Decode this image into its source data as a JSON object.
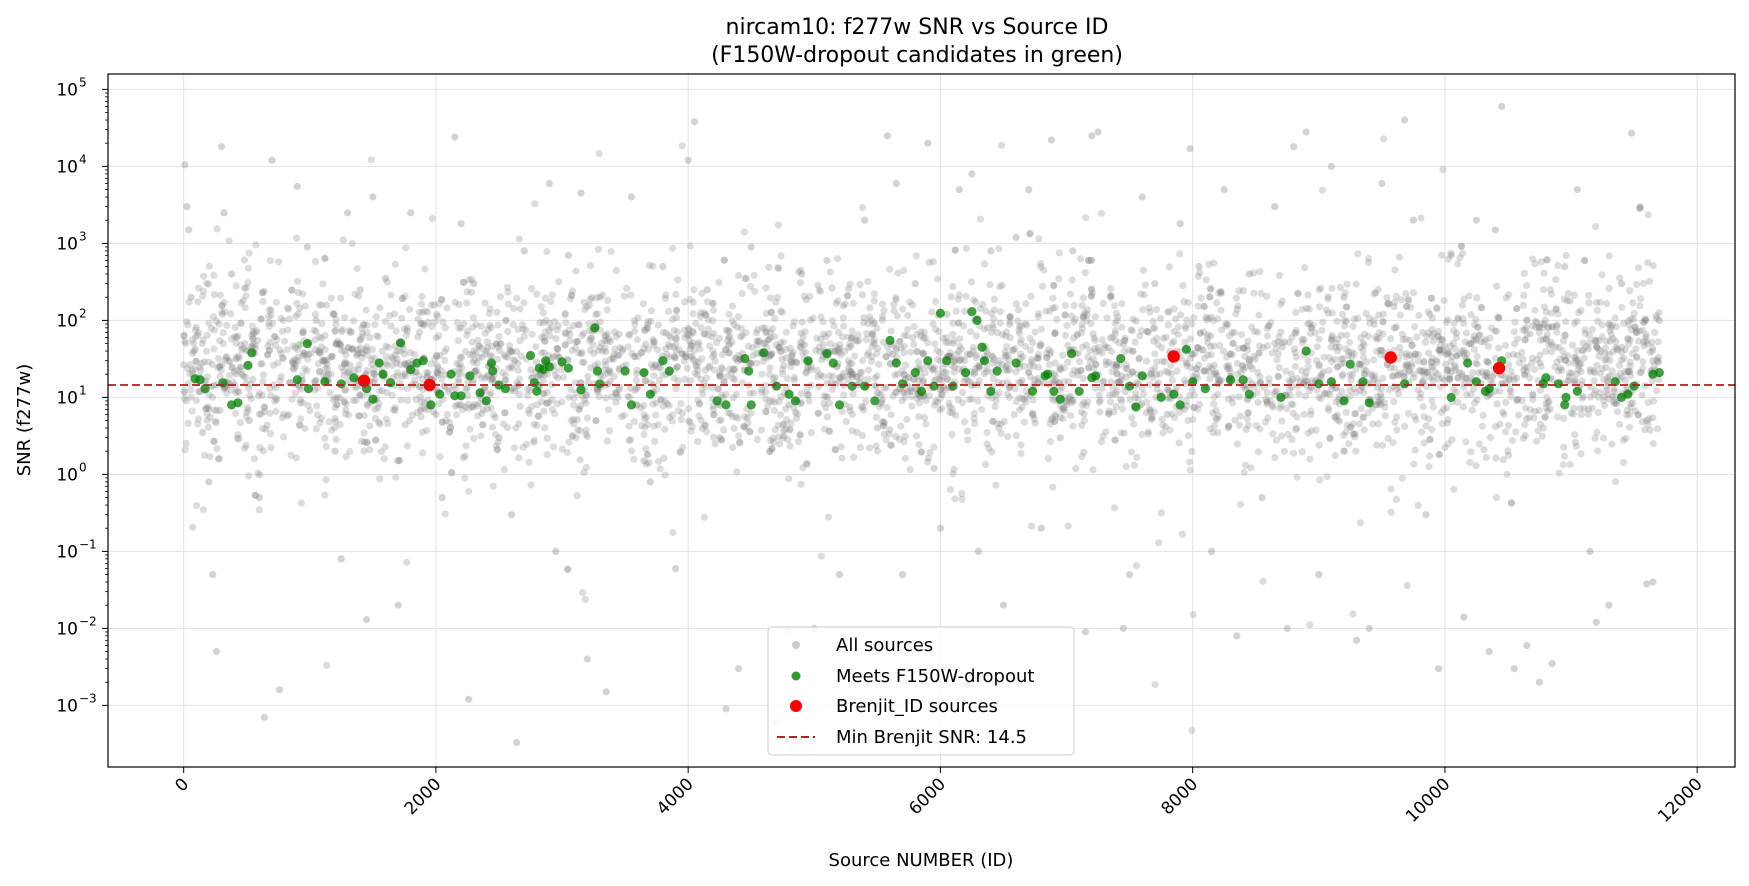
{
  "chart_data": {
    "type": "scatter",
    "title": "nircam10: f277w SNR vs Source ID",
    "subtitle": "(F150W-dropout candidates in green)",
    "xlabel": "Source NUMBER (ID)",
    "ylabel": "SNR (f277w)",
    "xlim": [
      -600,
      12300
    ],
    "ylim_log10": [
      -3.8,
      5.2
    ],
    "yscale": "log",
    "grid": true,
    "legend_placement": "lower-center",
    "x_ticks": [
      {
        "value": 0,
        "label": "0"
      },
      {
        "value": 2000,
        "label": "2000"
      },
      {
        "value": 4000,
        "label": "4000"
      },
      {
        "value": 6000,
        "label": "6000"
      },
      {
        "value": 8000,
        "label": "8000"
      },
      {
        "value": 10000,
        "label": "10000"
      },
      {
        "value": 12000,
        "label": "12000"
      }
    ],
    "y_ticks": [
      {
        "exp": -3,
        "base": "10",
        "sup": "−3"
      },
      {
        "exp": -2,
        "base": "10",
        "sup": "−2"
      },
      {
        "exp": -1,
        "base": "10",
        "sup": "−1"
      },
      {
        "exp": 0,
        "base": "10",
        "sup": "0"
      },
      {
        "exp": 1,
        "base": "10",
        "sup": "1"
      },
      {
        "exp": 2,
        "base": "10",
        "sup": "2"
      },
      {
        "exp": 3,
        "base": "10",
        "sup": "3"
      },
      {
        "exp": 4,
        "base": "10",
        "sup": "4"
      },
      {
        "exp": 5,
        "base": "10",
        "sup": "5"
      }
    ],
    "colors": {
      "all_sources": "#808080",
      "dropout": "#008000",
      "brenjit": "#ff0000",
      "threshold_line": "#b22222"
    },
    "threshold": {
      "value": 14.5,
      "label": "Min Brenjit SNR: 14.5"
    },
    "series": [
      {
        "name": "All sources",
        "note": "≈11,700 sources spanning ID 0–11700; bulk of SNR between 1 and 100 (log-normal scatter around ~25), tails from ~3e-4 to ~6e4",
        "points": [
          [
            10,
            10500
          ],
          [
            25,
            3000
          ],
          [
            40,
            1500
          ],
          [
            60,
            200
          ],
          [
            80,
            40
          ],
          [
            120,
            12
          ],
          [
            150,
            3.5
          ],
          [
            200,
            0.8
          ],
          [
            230,
            0.05
          ],
          [
            260,
            0.005
          ],
          [
            300,
            18000
          ],
          [
            320,
            2500
          ],
          [
            380,
            400
          ],
          [
            420,
            60
          ],
          [
            460,
            20
          ],
          [
            520,
            5
          ],
          [
            600,
            0.5
          ],
          [
            640,
            0.0007
          ],
          [
            700,
            12000
          ],
          [
            760,
            0.0016
          ],
          [
            900,
            5500
          ],
          [
            980,
            900
          ],
          [
            1050,
            100
          ],
          [
            1100,
            30
          ],
          [
            1200,
            2
          ],
          [
            1250,
            0.08
          ],
          [
            1300,
            2500
          ],
          [
            1400,
            250
          ],
          [
            1450,
            0.013
          ],
          [
            1500,
            4000
          ],
          [
            1600,
            350
          ],
          [
            1700,
            0.02
          ],
          [
            1800,
            2500
          ],
          [
            1900,
            90
          ],
          [
            2000,
            6
          ],
          [
            2050,
            0.5
          ],
          [
            2150,
            24000
          ],
          [
            2200,
            1800
          ],
          [
            2260,
            0.0012
          ],
          [
            2300,
            300
          ],
          [
            2400,
            40
          ],
          [
            2500,
            3
          ],
          [
            2600,
            0.3
          ],
          [
            2640,
            0.00033
          ],
          [
            2700,
            800
          ],
          [
            2800,
            15
          ],
          [
            2900,
            6000
          ],
          [
            2950,
            0.1
          ],
          [
            3050,
            700
          ],
          [
            3150,
            4500
          ],
          [
            3200,
            0.004
          ],
          [
            3300,
            200
          ],
          [
            3350,
            0.0015
          ],
          [
            3450,
            35
          ],
          [
            3550,
            4000
          ],
          [
            3650,
            1.5
          ],
          [
            3700,
            0.8
          ],
          [
            3800,
            500
          ],
          [
            3900,
            0.06
          ],
          [
            4000,
            12000
          ],
          [
            4050,
            38000
          ],
          [
            4150,
            250
          ],
          [
            4250,
            3
          ],
          [
            4300,
            0.0009
          ],
          [
            4400,
            0.003
          ],
          [
            4500,
            900
          ],
          [
            4600,
            50
          ],
          [
            4700,
            0.0006
          ],
          [
            4800,
            8
          ],
          [
            4900,
            400
          ],
          [
            5000,
            0.01
          ],
          [
            5100,
            600
          ],
          [
            5200,
            0.05
          ],
          [
            5300,
            60
          ],
          [
            5400,
            2000
          ],
          [
            5500,
            4
          ],
          [
            5580,
            25000
          ],
          [
            5650,
            6000
          ],
          [
            5700,
            0.05
          ],
          [
            5800,
            300
          ],
          [
            5900,
            20000
          ],
          [
            5950,
            1.2
          ],
          [
            6000,
            0.2
          ],
          [
            6050,
            120
          ],
          [
            6150,
            5000
          ],
          [
            6250,
            8000
          ],
          [
            6300,
            0.1
          ],
          [
            6400,
            800
          ],
          [
            6500,
            0.02
          ],
          [
            6600,
            1200
          ],
          [
            6700,
            5000
          ],
          [
            6800,
            0.2
          ],
          [
            6880,
            22000
          ],
          [
            6950,
            3
          ],
          [
            7050,
            800
          ],
          [
            7150,
            0.009
          ],
          [
            7200,
            25000
          ],
          [
            7250,
            28000
          ],
          [
            7350,
            200
          ],
          [
            7450,
            0.01
          ],
          [
            7500,
            0.05
          ],
          [
            7600,
            4000
          ],
          [
            7700,
            300
          ],
          [
            7800,
            6
          ],
          [
            7900,
            1800
          ],
          [
            7980,
            17000
          ],
          [
            8050,
            500
          ],
          [
            8150,
            0.1
          ],
          [
            8250,
            5000
          ],
          [
            8350,
            0.008
          ],
          [
            8450,
            400
          ],
          [
            8550,
            0.5
          ],
          [
            8650,
            3000
          ],
          [
            8750,
            0.01
          ],
          [
            8800,
            18000
          ],
          [
            8900,
            28000
          ],
          [
            9000,
            0.05
          ],
          [
            9100,
            10000
          ],
          [
            9200,
            200
          ],
          [
            9300,
            0.007
          ],
          [
            9400,
            0.01
          ],
          [
            9500,
            6000
          ],
          [
            9600,
            80
          ],
          [
            9680,
            40000
          ],
          [
            9750,
            2000
          ],
          [
            9850,
            0.3
          ],
          [
            9950,
            0.003
          ],
          [
            10050,
            700
          ],
          [
            10150,
            0.014
          ],
          [
            10250,
            2000
          ],
          [
            10350,
            0.005
          ],
          [
            10400,
            1500
          ],
          [
            10450,
            60000
          ],
          [
            10550,
            0.003
          ],
          [
            10650,
            0.006
          ],
          [
            10750,
            0.002
          ],
          [
            10850,
            0.0035
          ],
          [
            10950,
            500
          ],
          [
            11050,
            5000
          ],
          [
            11150,
            0.1
          ],
          [
            11200,
            0.012
          ],
          [
            11300,
            0.02
          ],
          [
            11400,
            300
          ],
          [
            11480,
            27000
          ],
          [
            11550,
            3000
          ],
          [
            11600,
            0.038
          ],
          [
            11650,
            0.04
          ],
          [
            11700,
            100
          ],
          [
            11650,
            30
          ],
          [
            11600,
            5
          ]
        ]
      },
      {
        "name": "Meets F150W-dropout",
        "points": [
          [
            90,
            17.5
          ],
          [
            130,
            17
          ],
          [
            170,
            13
          ],
          [
            310,
            15.5
          ],
          [
            380,
            8
          ],
          [
            430,
            8.5
          ],
          [
            510,
            26
          ],
          [
            540,
            38
          ],
          [
            900,
            17
          ],
          [
            980,
            50
          ],
          [
            990,
            13
          ],
          [
            1120,
            16
          ],
          [
            1250,
            15
          ],
          [
            1350,
            18
          ],
          [
            1450,
            13
          ],
          [
            1500,
            9.5
          ],
          [
            1550,
            28
          ],
          [
            1580,
            20
          ],
          [
            1640,
            15.5
          ],
          [
            1720,
            51
          ],
          [
            1800,
            23
          ],
          [
            1850,
            28
          ],
          [
            1900,
            30
          ],
          [
            1960,
            8
          ],
          [
            2030,
            11
          ],
          [
            2120,
            20
          ],
          [
            2150,
            10.5
          ],
          [
            2200,
            10.5
          ],
          [
            2270,
            19
          ],
          [
            2350,
            11.5
          ],
          [
            2400,
            9
          ],
          [
            2440,
            28
          ],
          [
            2450,
            22
          ],
          [
            2500,
            14.5
          ],
          [
            2550,
            13
          ],
          [
            2750,
            35
          ],
          [
            2780,
            15.5
          ],
          [
            2800,
            12
          ],
          [
            2820,
            24
          ],
          [
            2850,
            23
          ],
          [
            2870,
            30
          ],
          [
            2900,
            25
          ],
          [
            3000,
            29
          ],
          [
            3050,
            24
          ],
          [
            3150,
            12.5
          ],
          [
            3260,
            80
          ],
          [
            3280,
            22
          ],
          [
            3300,
            15
          ],
          [
            3500,
            22
          ],
          [
            3550,
            8
          ],
          [
            3650,
            21
          ],
          [
            3700,
            11
          ],
          [
            3800,
            30
          ],
          [
            3850,
            22
          ],
          [
            4230,
            9
          ],
          [
            4300,
            8
          ],
          [
            4450,
            32
          ],
          [
            4480,
            22
          ],
          [
            4500,
            8
          ],
          [
            4600,
            38
          ],
          [
            4700,
            14
          ],
          [
            4800,
            11
          ],
          [
            4850,
            9
          ],
          [
            4950,
            30
          ],
          [
            5100,
            37
          ],
          [
            5150,
            28
          ],
          [
            5200,
            8
          ],
          [
            5300,
            14
          ],
          [
            5400,
            14
          ],
          [
            5480,
            9
          ],
          [
            5600,
            55
          ],
          [
            5650,
            28
          ],
          [
            5700,
            15
          ],
          [
            5800,
            21
          ],
          [
            5850,
            12
          ],
          [
            5900,
            30
          ],
          [
            5950,
            14
          ],
          [
            6000,
            124
          ],
          [
            6050,
            30
          ],
          [
            6100,
            14
          ],
          [
            6200,
            21
          ],
          [
            6250,
            130
          ],
          [
            6290,
            100
          ],
          [
            6330,
            45
          ],
          [
            6350,
            30
          ],
          [
            6400,
            12
          ],
          [
            6450,
            22
          ],
          [
            6600,
            28
          ],
          [
            6730,
            12
          ],
          [
            6830,
            19
          ],
          [
            6850,
            20
          ],
          [
            6900,
            12
          ],
          [
            6950,
            9.5
          ],
          [
            7040,
            37
          ],
          [
            7100,
            12
          ],
          [
            7200,
            18
          ],
          [
            7230,
            19
          ],
          [
            7430,
            32
          ],
          [
            7500,
            14
          ],
          [
            7550,
            7.5
          ],
          [
            7600,
            19
          ],
          [
            7750,
            10
          ],
          [
            7850,
            11
          ],
          [
            7900,
            8
          ],
          [
            7950,
            42
          ],
          [
            8000,
            16
          ],
          [
            8100,
            13
          ],
          [
            8300,
            17
          ],
          [
            8400,
            17
          ],
          [
            8450,
            11
          ],
          [
            8700,
            10
          ],
          [
            8900,
            40
          ],
          [
            9000,
            15
          ],
          [
            9100,
            16
          ],
          [
            9200,
            9
          ],
          [
            9250,
            27
          ],
          [
            9350,
            16
          ],
          [
            9400,
            8.5
          ],
          [
            9680,
            15
          ],
          [
            10050,
            10
          ],
          [
            10180,
            28
          ],
          [
            10250,
            16
          ],
          [
            10320,
            12
          ],
          [
            10350,
            13
          ],
          [
            10450,
            30
          ],
          [
            10780,
            15
          ],
          [
            10800,
            18
          ],
          [
            10900,
            15
          ],
          [
            10950,
            8
          ],
          [
            10960,
            10
          ],
          [
            11050,
            12
          ],
          [
            11350,
            16
          ],
          [
            11400,
            10
          ],
          [
            11450,
            11
          ],
          [
            11500,
            14
          ],
          [
            11650,
            20
          ],
          [
            11700,
            21
          ]
        ]
      },
      {
        "name": "Brenjit_ID sources",
        "points": [
          [
            1430,
            16.5
          ],
          [
            1950,
            14.5
          ],
          [
            7850,
            34
          ],
          [
            9570,
            33
          ],
          [
            10430,
            24
          ]
        ]
      }
    ]
  }
}
